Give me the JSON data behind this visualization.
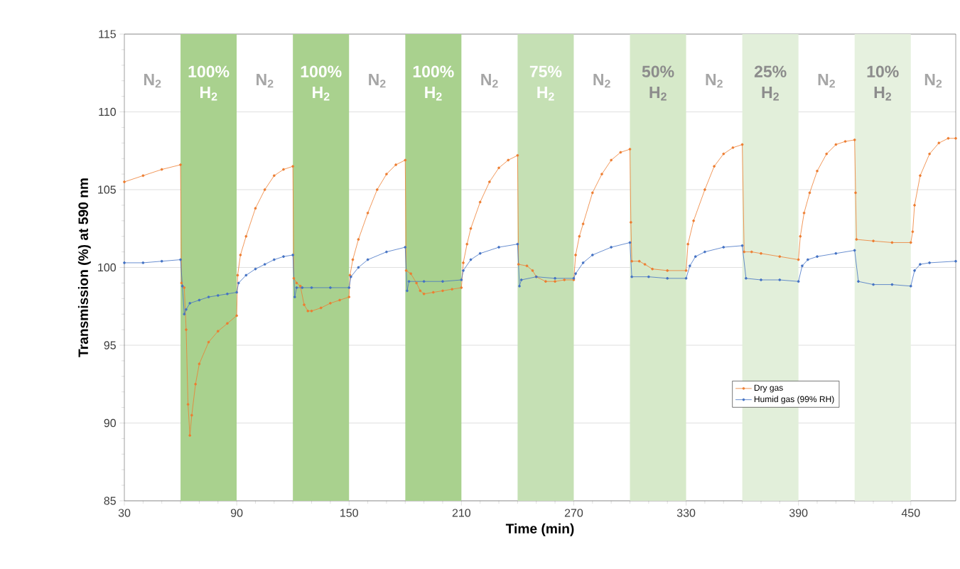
{
  "chart_data": {
    "type": "line",
    "xlabel": "Time (min)",
    "ylabel": "Transmission (%) at 590 nm",
    "xlim": [
      30,
      474
    ],
    "xticks": [
      30,
      90,
      150,
      210,
      270,
      330,
      390,
      450
    ],
    "ylim": [
      85,
      115
    ],
    "yticks": [
      85,
      90,
      95,
      100,
      105,
      110,
      115
    ],
    "grid": "y",
    "legend": "bottom right",
    "marker": "circle",
    "line_style": "solid",
    "series": [
      {
        "name": "Dry gas",
        "color": "#ed7d31",
        "x": [
          30,
          40,
          50,
          60,
          60.5,
          62,
          63,
          64,
          65,
          66,
          68,
          70,
          75,
          80,
          85,
          90,
          90.5,
          92,
          95,
          100,
          105,
          110,
          115,
          120,
          120.5,
          122,
          124,
          126,
          128,
          130,
          135,
          140,
          145,
          150,
          150.5,
          152,
          155,
          160,
          165,
          170,
          175,
          180,
          180.5,
          183,
          186,
          188,
          190,
          195,
          200,
          205,
          210,
          211,
          213,
          215,
          220,
          225,
          230,
          235,
          240,
          240.5,
          245,
          248,
          250,
          255,
          260,
          265,
          270,
          271,
          273,
          275,
          280,
          285,
          290,
          295,
          300,
          300.5,
          301,
          305,
          308,
          312,
          320,
          330,
          331,
          334,
          340,
          345,
          350,
          355,
          360,
          361,
          365,
          370,
          380,
          390,
          391,
          393,
          396,
          400,
          405,
          410,
          415,
          420,
          420.5,
          421,
          430,
          440,
          450,
          451,
          452,
          455,
          460,
          465,
          470,
          474
        ],
        "values": [
          105.5,
          105.9,
          106.3,
          106.6,
          99,
          98.7,
          96,
          91.2,
          89.2,
          90.5,
          92.5,
          93.8,
          95.2,
          95.9,
          96.4,
          96.9,
          99.5,
          100.8,
          102,
          103.8,
          105,
          105.9,
          106.3,
          106.5,
          99.3,
          99,
          98.8,
          97.6,
          97.2,
          97.2,
          97.4,
          97.7,
          97.9,
          98.1,
          99.5,
          100.5,
          101.8,
          103.5,
          105,
          106,
          106.6,
          106.9,
          99.8,
          99.6,
          99,
          98.5,
          98.3,
          98.4,
          98.5,
          98.6,
          98.7,
          100.3,
          101.5,
          102.5,
          104.2,
          105.5,
          106.4,
          106.9,
          107.2,
          100.2,
          100.1,
          99.8,
          99.4,
          99.1,
          99.1,
          99.2,
          99.2,
          100.8,
          102,
          102.8,
          104.8,
          106,
          106.9,
          107.4,
          107.6,
          102.9,
          100.4,
          100.4,
          100.2,
          99.9,
          99.8,
          99.8,
          101.5,
          103,
          105,
          106.5,
          107.3,
          107.7,
          107.9,
          101,
          101,
          100.9,
          100.7,
          100.5,
          102,
          103.5,
          104.8,
          106.2,
          107.3,
          107.9,
          108.1,
          108.2,
          104.8,
          101.8,
          101.7,
          101.6,
          101.6,
          102.3,
          104,
          105.9,
          107.3,
          108,
          108.3,
          108.3
        ]
      },
      {
        "name": "Humid gas (99% RH)",
        "color": "#4472c4",
        "x": [
          30,
          40,
          50,
          60,
          61,
          62,
          63,
          65,
          70,
          75,
          80,
          85,
          90,
          91,
          95,
          100,
          105,
          110,
          115,
          120,
          121,
          122,
          125,
          130,
          140,
          150,
          151,
          155,
          160,
          170,
          180,
          181,
          182,
          190,
          200,
          210,
          211,
          215,
          220,
          230,
          240,
          241,
          242,
          250,
          260,
          270,
          271,
          275,
          280,
          290,
          300,
          301,
          310,
          320,
          330,
          332,
          335,
          340,
          350,
          360,
          362,
          370,
          380,
          390,
          392,
          395,
          400,
          410,
          420,
          422,
          430,
          440,
          450,
          452,
          455,
          460,
          474
        ],
        "values": [
          100.3,
          100.3,
          100.4,
          100.5,
          98.8,
          97,
          97.3,
          97.7,
          97.9,
          98.1,
          98.2,
          98.3,
          98.4,
          99,
          99.5,
          99.9,
          100.2,
          100.5,
          100.7,
          100.8,
          98.1,
          98.7,
          98.7,
          98.7,
          98.7,
          98.7,
          99.4,
          100,
          100.5,
          101,
          101.3,
          98.5,
          99.1,
          99.1,
          99.1,
          99.2,
          99.8,
          100.5,
          100.9,
          101.3,
          101.5,
          98.8,
          99.2,
          99.4,
          99.3,
          99.3,
          99.6,
          100.3,
          100.8,
          101.3,
          101.6,
          99.4,
          99.4,
          99.3,
          99.3,
          100.1,
          100.7,
          101,
          101.3,
          101.4,
          99.3,
          99.2,
          99.2,
          99.1,
          100.1,
          100.5,
          100.7,
          100.9,
          101.1,
          99.1,
          98.9,
          98.9,
          98.8,
          99.8,
          100.2,
          100.3,
          100.4
        ]
      }
    ],
    "bands": [
      {
        "axis": "x",
        "from": 60,
        "to": 90,
        "label": "100% H$_{2}$",
        "color": "#a9d18e"
      },
      {
        "axis": "x",
        "from": 120,
        "to": 150,
        "label": "100% H$_{2}$",
        "color": "#a9d18e"
      },
      {
        "axis": "x",
        "from": 180,
        "to": 210,
        "label": "100% H$_{2}$",
        "color": "#a9d18e"
      },
      {
        "axis": "x",
        "from": 240,
        "to": 270,
        "label": "75% H$_{2}$",
        "color": "#c5e0b4"
      },
      {
        "axis": "x",
        "from": 300,
        "to": 330,
        "label": "50% H$_{2}$",
        "color": "#d6e9c9"
      },
      {
        "axis": "x",
        "from": 360,
        "to": 390,
        "label": "25% H$_{2}$",
        "color": "#e2efda"
      },
      {
        "axis": "x",
        "from": 420,
        "to": 450,
        "label": "10% H$_{2}$",
        "color": "#e6f1df"
      }
    ],
    "annotations": [
      "N$_{2}$",
      "N$_{2}$",
      "N$_{2}$",
      "N$_{2}$",
      "N$_{2}$",
      "N$_{2}$",
      "N$_{2}$",
      "N$_{2}$"
    ]
  }
}
